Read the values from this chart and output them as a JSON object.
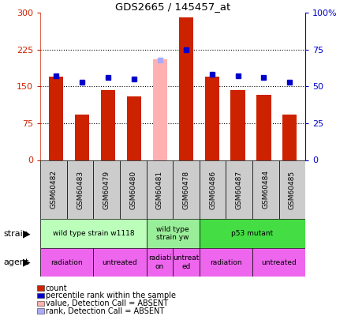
{
  "title": "GDS2665 / 145457_at",
  "samples": [
    "GSM60482",
    "GSM60483",
    "GSM60479",
    "GSM60480",
    "GSM60481",
    "GSM60478",
    "GSM60486",
    "GSM60487",
    "GSM60484",
    "GSM60485"
  ],
  "bar_values": [
    170,
    93,
    143,
    130,
    205,
    290,
    170,
    143,
    133,
    92
  ],
  "bar_colors": [
    "#cc2200",
    "#cc2200",
    "#cc2200",
    "#cc2200",
    "#ffb0b0",
    "#cc2200",
    "#cc2200",
    "#cc2200",
    "#cc2200",
    "#cc2200"
  ],
  "rank_values": [
    57,
    53,
    56,
    55,
    68,
    75,
    58,
    57,
    56,
    53
  ],
  "rank_colors": [
    "#0000cc",
    "#0000cc",
    "#0000cc",
    "#0000cc",
    "#aaaaff",
    "#0000cc",
    "#0000cc",
    "#0000cc",
    "#0000cc",
    "#0000cc"
  ],
  "ylim_left": [
    0,
    300
  ],
  "ylim_right": [
    0,
    100
  ],
  "yticks_left": [
    0,
    75,
    150,
    225,
    300
  ],
  "ytick_labels_left": [
    "0",
    "75",
    "150",
    "225",
    "300"
  ],
  "yticks_right": [
    0,
    25,
    50,
    75,
    100
  ],
  "ytick_labels_right": [
    "0",
    "25",
    "50",
    "75",
    "100%"
  ],
  "hlines": [
    75,
    150,
    225
  ],
  "strain_groups": [
    {
      "label": "wild type strain w1118",
      "start": 0,
      "end": 4,
      "color": "#bbffbb"
    },
    {
      "label": "wild type\nstrain yw",
      "start": 4,
      "end": 6,
      "color": "#99ee99"
    },
    {
      "label": "p53 mutant",
      "start": 6,
      "end": 10,
      "color": "#44dd44"
    }
  ],
  "agent_groups": [
    {
      "label": "radiation",
      "start": 0,
      "end": 2,
      "color": "#ee66ee"
    },
    {
      "label": "untreated",
      "start": 2,
      "end": 4,
      "color": "#ee66ee"
    },
    {
      "label": "radiati-\non",
      "start": 4,
      "end": 5,
      "color": "#ee66ee"
    },
    {
      "label": "untreat-\ned",
      "start": 5,
      "end": 6,
      "color": "#ee66ee"
    },
    {
      "label": "radiation",
      "start": 6,
      "end": 8,
      "color": "#ee66ee"
    },
    {
      "label": "untreated",
      "start": 8,
      "end": 10,
      "color": "#ee66ee"
    }
  ],
  "legend_items": [
    {
      "label": "count",
      "color": "#cc2200"
    },
    {
      "label": "percentile rank within the sample",
      "color": "#0000cc"
    },
    {
      "label": "value, Detection Call = ABSENT",
      "color": "#ffb0b0"
    },
    {
      "label": "rank, Detection Call = ABSENT",
      "color": "#aaaaff"
    }
  ],
  "strain_label": "strain",
  "agent_label": "agent",
  "bar_width": 0.55
}
